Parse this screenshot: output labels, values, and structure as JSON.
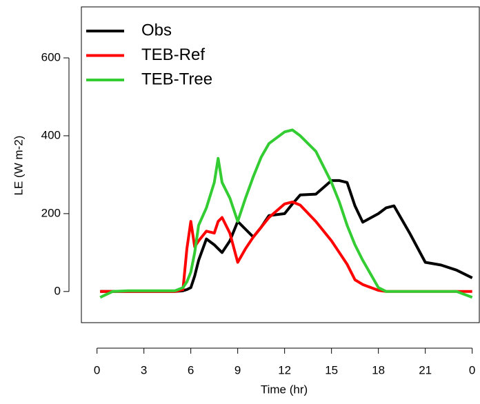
{
  "chart_data": {
    "type": "line",
    "x_label": "Time (hr)",
    "y_label": "LE (W m-2)",
    "x": [
      0.2,
      1,
      2,
      3,
      4,
      5,
      5.5,
      5.75,
      6,
      6.25,
      6.5,
      7,
      7.5,
      7.75,
      8,
      8.5,
      9,
      9.5,
      10,
      10.5,
      11,
      12,
      12.5,
      13,
      14,
      15,
      15.5,
      16,
      16.5,
      17,
      18,
      18.5,
      19,
      20,
      21,
      22,
      23,
      24
    ],
    "series": [
      {
        "name": "Obs",
        "color": "#000000",
        "values": [
          0,
          0,
          0,
          0,
          0,
          0,
          2,
          5,
          10,
          40,
          80,
          135,
          120,
          110,
          100,
          130,
          180,
          160,
          140,
          165,
          195,
          200,
          225,
          248,
          250,
          285,
          285,
          280,
          220,
          178,
          200,
          215,
          220,
          150,
          75,
          68,
          55,
          35
        ]
      },
      {
        "name": "TEB-Ref",
        "color": "#ff0000",
        "values": [
          0,
          0,
          0,
          0,
          0,
          0,
          5,
          110,
          180,
          115,
          130,
          155,
          150,
          180,
          190,
          150,
          75,
          110,
          140,
          165,
          190,
          225,
          230,
          222,
          180,
          130,
          100,
          70,
          30,
          18,
          3,
          0,
          0,
          0,
          0,
          0,
          0,
          0
        ]
      },
      {
        "name": "TEB-Tree",
        "color": "#33cc33",
        "values": [
          -15,
          0,
          2,
          2,
          2,
          2,
          10,
          25,
          50,
          100,
          170,
          215,
          280,
          342,
          280,
          240,
          180,
          240,
          295,
          345,
          380,
          410,
          415,
          400,
          360,
          280,
          230,
          170,
          120,
          80,
          10,
          0,
          0,
          0,
          0,
          0,
          0,
          -15
        ]
      }
    ],
    "xlim": [
      -1,
      24.5
    ],
    "ylim": [
      -80,
      731
    ],
    "xticks": [
      0,
      3,
      6,
      9,
      12,
      15,
      18,
      21,
      {
        "value": 24,
        "label": "0"
      }
    ],
    "yticks": [
      0,
      200,
      400,
      600
    ],
    "legend": "top-left",
    "grid": false
  }
}
